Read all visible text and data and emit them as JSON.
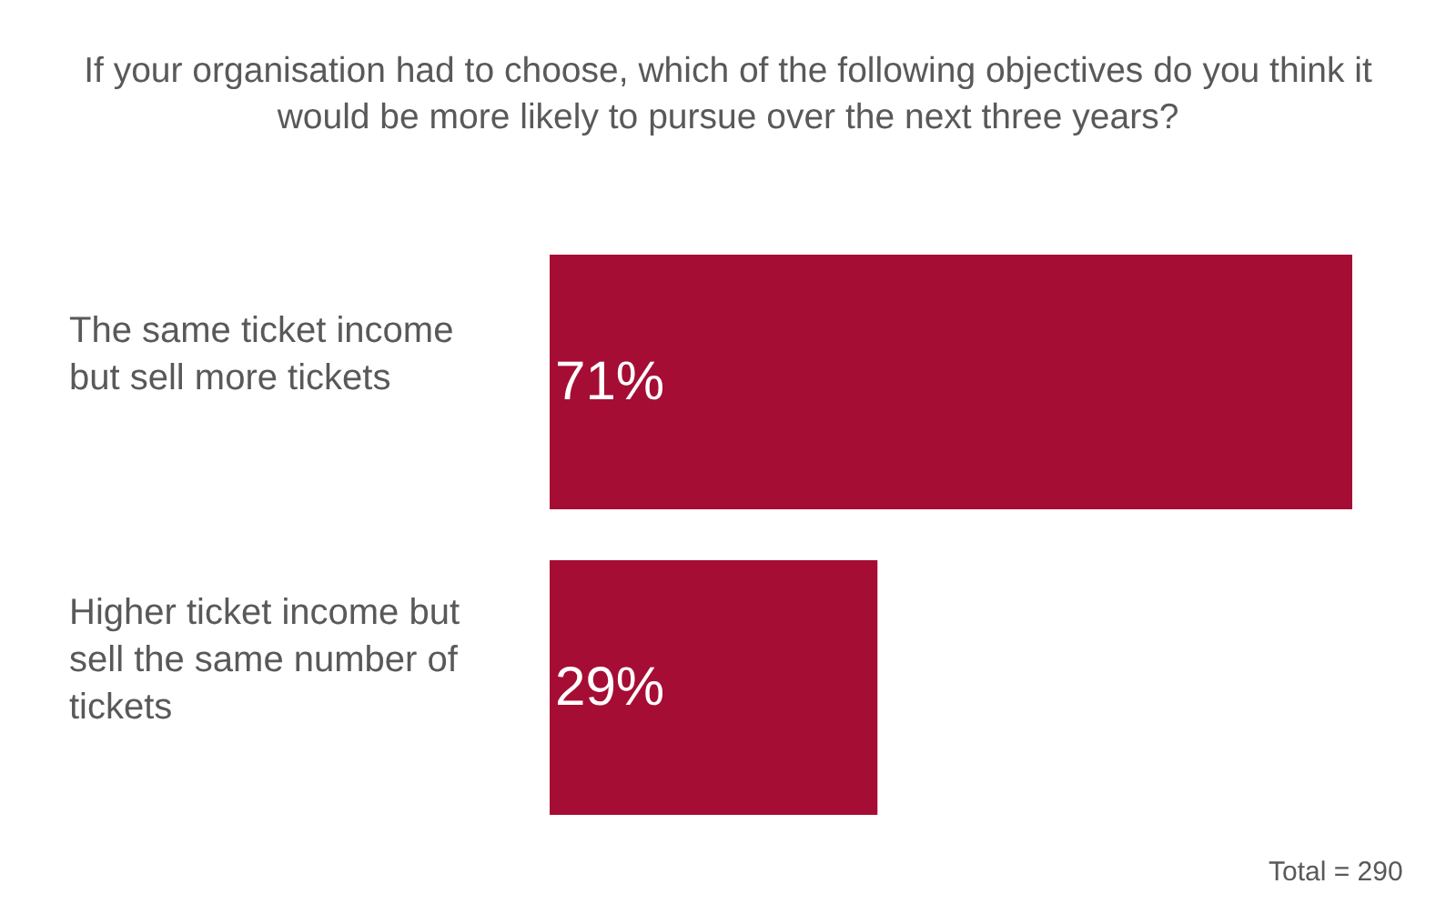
{
  "chart_data": {
    "type": "bar",
    "orientation": "horizontal",
    "title": "If your organisation had to choose, which of the following objectives do you think it would be more likely to pursue over the next three years?",
    "categories": [
      "The same ticket income but sell more tickets",
      "Higher ticket income but sell the same number of tickets"
    ],
    "values": [
      71,
      29
    ],
    "value_labels": [
      "71%",
      "29%"
    ],
    "color": "#a60d34",
    "annotations": [
      "Total = 290"
    ],
    "tick_labels": "y"
  }
}
